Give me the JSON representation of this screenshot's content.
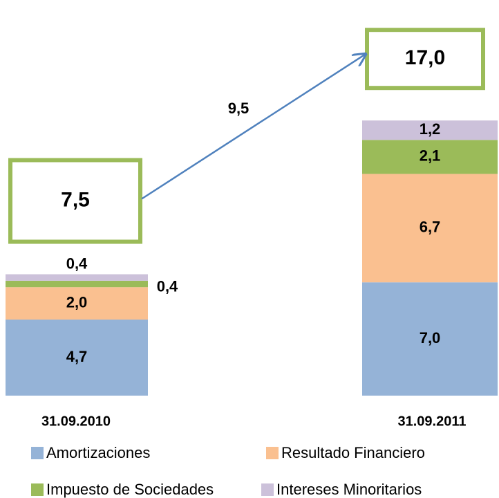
{
  "chart_data": {
    "type": "stacked_bar",
    "categories": [
      "31.09.2010",
      "31.09.2011"
    ],
    "series": [
      {
        "name": "Amortizaciones",
        "color": "#95b3d7",
        "values": [
          4.7,
          7.0
        ],
        "value_labels": [
          "4,7",
          "7,0"
        ]
      },
      {
        "name": "Resultado Financiero",
        "color": "#fac090",
        "values": [
          2.0,
          6.7
        ],
        "value_labels": [
          "2,0",
          "6,7"
        ]
      },
      {
        "name": "Impuesto de Sociedades",
        "color": "#9bbb59",
        "values": [
          0.4,
          2.1
        ],
        "value_labels": [
          "0,4",
          "2,1"
        ]
      },
      {
        "name": "Intereses Minoritarios",
        "color": "#ccc1da",
        "values": [
          0.4,
          1.2
        ],
        "value_labels": [
          "0,4",
          "1,2"
        ]
      }
    ],
    "totals": {
      "values": [
        7.5,
        17.0
      ],
      "value_labels": [
        "7,5",
        "17,0"
      ],
      "color": "#9bbb59"
    },
    "difference": {
      "value": 9.5,
      "label": "9,5",
      "color": "#4f81bd"
    }
  }
}
